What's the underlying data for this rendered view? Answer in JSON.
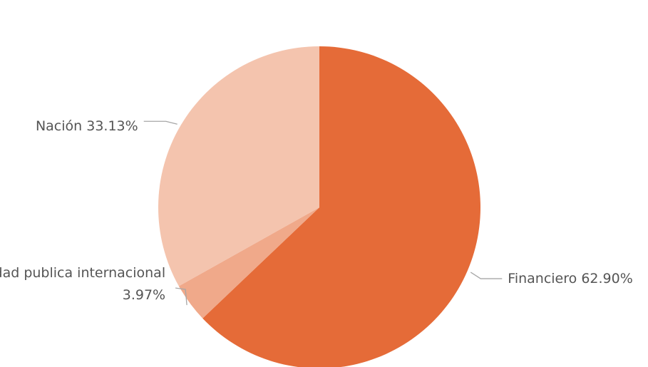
{
  "chart_data": {
    "type": "pie",
    "slices": [
      {
        "label": "Financiero",
        "value": 62.9,
        "value_text": "62.90%",
        "color": "#e56b38"
      },
      {
        "label": "Entidad publica internacional",
        "value": 3.97,
        "value_text": "3.97%",
        "color": "#f0a98a"
      },
      {
        "label": "Nación",
        "value": 33.13,
        "value_text": "33.13%",
        "color": "#f4c4ae"
      }
    ],
    "start_angle": "top",
    "direction": "clockwise",
    "legend": "none"
  }
}
